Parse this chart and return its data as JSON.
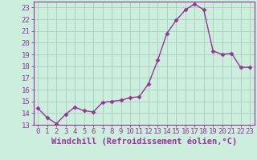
{
  "x": [
    0,
    1,
    2,
    3,
    4,
    5,
    6,
    7,
    8,
    9,
    10,
    11,
    12,
    13,
    14,
    15,
    16,
    17,
    18,
    19,
    20,
    21,
    22,
    23
  ],
  "y": [
    14.4,
    13.6,
    13.1,
    13.9,
    14.5,
    14.2,
    14.1,
    14.9,
    15.0,
    15.1,
    15.3,
    15.4,
    16.5,
    18.5,
    20.8,
    21.9,
    22.8,
    23.3,
    22.8,
    19.3,
    19.0,
    19.1,
    17.9,
    17.9
  ],
  "line_color": "#993399",
  "marker": "D",
  "marker_size": 2.5,
  "bg_color": "#cceedd",
  "grid_color": "#aaccbb",
  "xlabel": "Windchill (Refroidissement éolien,°C)",
  "xlabel_fontsize": 7.5,
  "ylim": [
    13,
    23.5
  ],
  "xlim": [
    -0.5,
    23.5
  ],
  "yticks": [
    13,
    14,
    15,
    16,
    17,
    18,
    19,
    20,
    21,
    22,
    23
  ],
  "xticks": [
    0,
    1,
    2,
    3,
    4,
    5,
    6,
    7,
    8,
    9,
    10,
    11,
    12,
    13,
    14,
    15,
    16,
    17,
    18,
    19,
    20,
    21,
    22,
    23
  ],
  "tick_label_fontsize": 6.5,
  "tick_color": "#993399",
  "axis_color": "#993399",
  "line_width": 1.0
}
